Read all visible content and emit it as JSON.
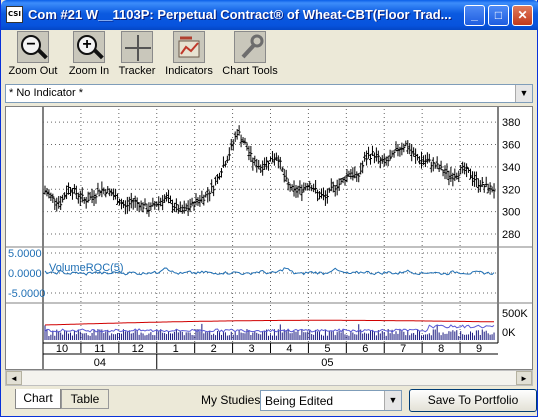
{
  "window": {
    "icon_label": "CSI",
    "title": "Com #21 W__1103P: Perpetual Contract® of Wheat-CBT(Floor Trad...",
    "minimize": "_",
    "maximize": "□",
    "close": "✕"
  },
  "toolbar": {
    "items": [
      {
        "label": "Zoom Out",
        "icon": "zoom-out-icon"
      },
      {
        "label": "Zoom In",
        "icon": "zoom-in-icon"
      },
      {
        "label": "Tracker",
        "icon": "crosshair-icon"
      },
      {
        "label": "Indicators",
        "icon": "indicators-icon"
      },
      {
        "label": "Chart Tools",
        "icon": "wrench-icon"
      }
    ]
  },
  "indicator_select": {
    "value": "* No Indicator *"
  },
  "chart_data": [
    {
      "type": "bar",
      "subtype": "ohlc",
      "y_ticks": [
        "380",
        "360",
        "340",
        "320",
        "300",
        "280"
      ],
      "ylim": [
        272,
        390
      ],
      "approx_close_path": [
        318,
        312,
        308,
        322,
        316,
        310,
        314,
        320,
        318,
        312,
        304,
        310,
        306,
        302,
        308,
        312,
        306,
        300,
        304,
        310,
        314,
        322,
        338,
        352,
        372,
        360,
        344,
        340,
        346,
        350,
        328,
        318,
        320,
        326,
        316,
        312,
        322,
        326,
        336,
        330,
        348,
        352,
        344,
        346,
        356,
        360,
        350,
        346,
        344,
        340,
        334,
        332,
        338,
        334,
        326,
        322,
        320
      ]
    },
    {
      "type": "line",
      "series": [
        {
          "name": "VolumeROC(5)",
          "values": [
            0.2,
            -0.1,
            0.3,
            -0.2,
            0.1,
            -0.3,
            0.2,
            0.0,
            -0.2,
            0.3,
            -0.1,
            0.1,
            -0.2,
            0.2,
            0.0,
            1.6,
            0.1,
            -0.2,
            0.2,
            -0.1,
            0.3,
            -0.2,
            0.1,
            0.0,
            0.2,
            -0.3,
            0.1,
            0.4,
            -0.1,
            0.2,
            1.3,
            0.0,
            -0.2,
            0.2,
            0.1,
            -0.1,
            1.0,
            0.2,
            -0.2,
            0.1,
            0.3,
            -0.1,
            0.0,
            0.2,
            -0.2,
            0.6,
            0.1,
            -0.1,
            0.2,
            0.0,
            -0.2,
            0.3,
            0.1,
            -0.1,
            0.2,
            0.0,
            -0.1
          ]
        }
      ],
      "y_ticks": [
        "5.0000",
        "0.0000",
        "-5.0000"
      ],
      "ylim": [
        -5,
        5
      ]
    },
    {
      "type": "bar",
      "y_ticks": [
        "500K",
        "0K"
      ],
      "x_tick_labels": [
        "10",
        "11",
        "12",
        "1",
        "2",
        "3",
        "4",
        "5",
        "6",
        "7",
        "8",
        "9"
      ],
      "year_labels": [
        "04",
        "05"
      ]
    }
  ],
  "bottom": {
    "tab_chart": "Chart",
    "tab_table": "Table",
    "my_studies_label": "My Studies:",
    "my_studies_value": "Being Edited",
    "save_button": "Save To Portfolio"
  },
  "colors": {
    "price_bars": "#000000",
    "roc_line": "#1f6fb4",
    "roc_label": "#1f6fb4",
    "open_interest": "#d00000",
    "volume": "#1a1a80"
  }
}
